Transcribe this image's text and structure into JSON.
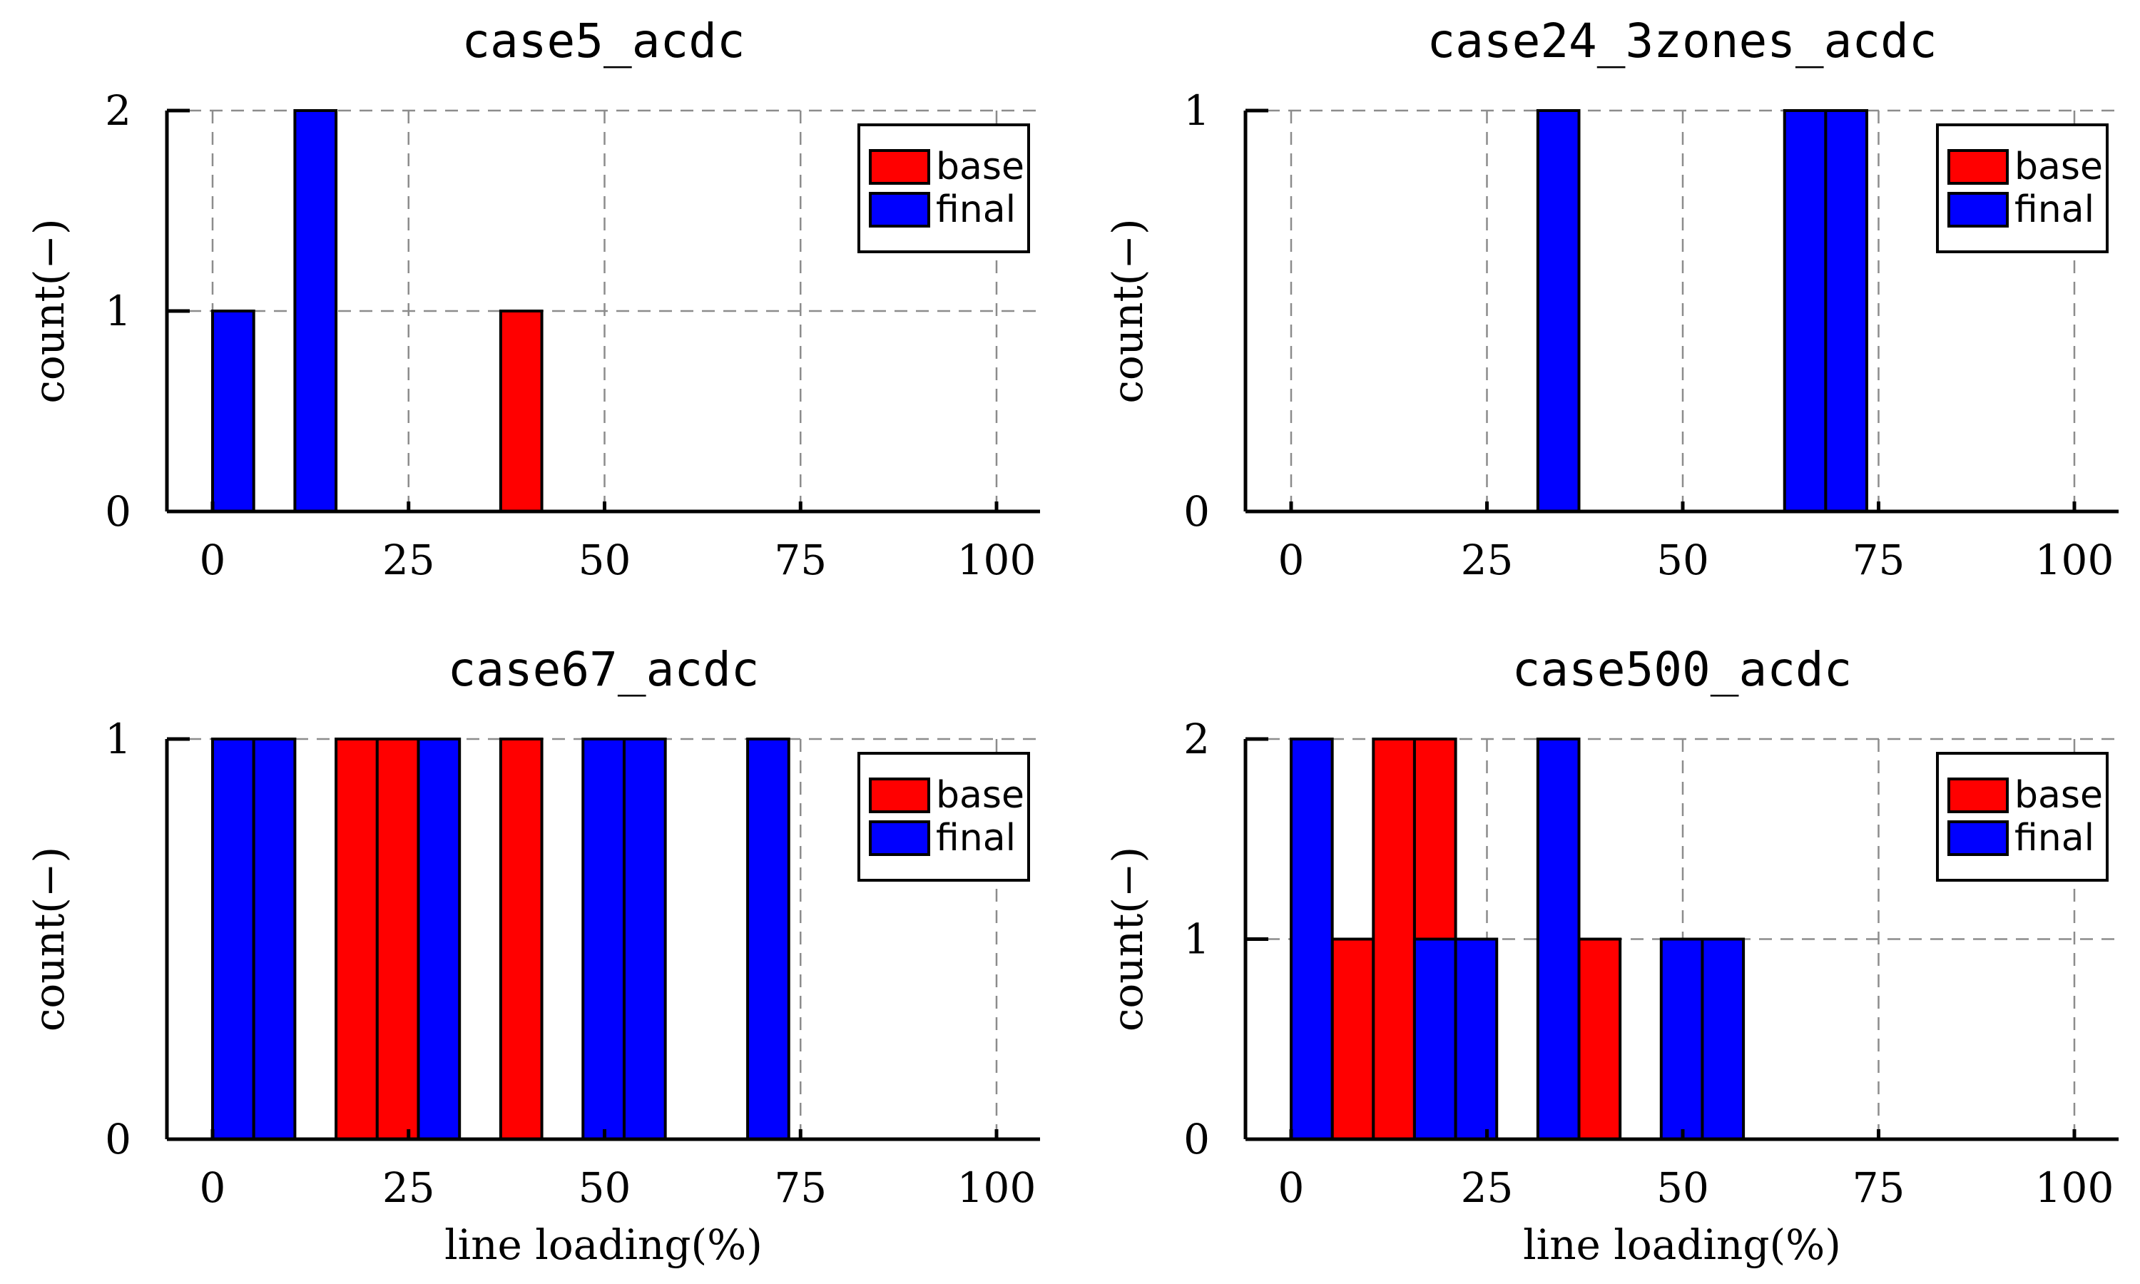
{
  "chart_data": [
    {
      "type": "bar",
      "title": "case5_acdc",
      "xlabel": "",
      "ylabel": "count(−)",
      "xlim": [
        0,
        100
      ],
      "xticks": [
        "0",
        "25",
        "50",
        "75",
        "100"
      ],
      "ylim": [
        0,
        2
      ],
      "yticks": [
        "0",
        "1",
        "2"
      ],
      "grid": true,
      "legend_position": "top-right",
      "bin_width": 5.25,
      "series": [
        {
          "name": "base",
          "color": "#ff0000",
          "bins": [
            {
              "x0": 36.75,
              "x1": 42.0,
              "count": 1
            }
          ]
        },
        {
          "name": "final",
          "color": "#0000ff",
          "bins": [
            {
              "x0": 0.0,
              "x1": 5.25,
              "count": 1
            },
            {
              "x0": 10.5,
              "x1": 15.75,
              "count": 2
            }
          ]
        }
      ]
    },
    {
      "type": "bar",
      "title": "case24_3zones_acdc",
      "xlabel": "",
      "ylabel": "count(−)",
      "xlim": [
        0,
        100
      ],
      "xticks": [
        "0",
        "25",
        "50",
        "75",
        "100"
      ],
      "ylim": [
        0,
        1
      ],
      "yticks": [
        "0",
        "1"
      ],
      "grid": true,
      "legend_position": "top-right",
      "bin_width": 5.25,
      "series": [
        {
          "name": "base",
          "color": "#ff0000",
          "bins": []
        },
        {
          "name": "final",
          "color": "#0000ff",
          "bins": [
            {
              "x0": 31.5,
              "x1": 36.75,
              "count": 1
            },
            {
              "x0": 63.0,
              "x1": 68.25,
              "count": 1
            },
            {
              "x0": 68.25,
              "x1": 73.5,
              "count": 1
            }
          ]
        }
      ]
    },
    {
      "type": "bar",
      "title": "case67_acdc",
      "xlabel": "line loading(%)",
      "ylabel": "count(−)",
      "xlim": [
        0,
        100
      ],
      "xticks": [
        "0",
        "25",
        "50",
        "75",
        "100"
      ],
      "ylim": [
        0,
        1
      ],
      "yticks": [
        "0",
        "1"
      ],
      "grid": true,
      "legend_position": "top-right",
      "bin_width": 5.25,
      "series": [
        {
          "name": "base",
          "color": "#ff0000",
          "bins": [
            {
              "x0": 15.75,
              "x1": 21.0,
              "count": 1
            },
            {
              "x0": 21.0,
              "x1": 26.25,
              "count": 1
            },
            {
              "x0": 36.75,
              "x1": 42.0,
              "count": 1
            }
          ]
        },
        {
          "name": "final",
          "color": "#0000ff",
          "bins": [
            {
              "x0": 0.0,
              "x1": 5.25,
              "count": 1
            },
            {
              "x0": 5.25,
              "x1": 10.5,
              "count": 1
            },
            {
              "x0": 26.25,
              "x1": 31.5,
              "count": 1
            },
            {
              "x0": 47.25,
              "x1": 52.5,
              "count": 1
            },
            {
              "x0": 52.5,
              "x1": 57.75,
              "count": 1
            },
            {
              "x0": 68.25,
              "x1": 73.5,
              "count": 1
            }
          ]
        }
      ]
    },
    {
      "type": "bar",
      "title": "case500_acdc",
      "xlabel": "line loading(%)",
      "ylabel": "count(−)",
      "xlim": [
        0,
        100
      ],
      "xticks": [
        "0",
        "25",
        "50",
        "75",
        "100"
      ],
      "ylim": [
        0,
        2
      ],
      "yticks": [
        "0",
        "1",
        "2"
      ],
      "grid": true,
      "legend_position": "top-right",
      "bin_width": 5.25,
      "series": [
        {
          "name": "base",
          "color": "#ff0000",
          "bins": [
            {
              "x0": 5.25,
              "x1": 10.5,
              "count": 1
            },
            {
              "x0": 10.5,
              "x1": 15.75,
              "count": 2
            },
            {
              "x0": 15.75,
              "x1": 21.0,
              "count": 2
            },
            {
              "x0": 36.75,
              "x1": 42.0,
              "count": 1
            }
          ]
        },
        {
          "name": "final",
          "color": "#0000ff",
          "bins": [
            {
              "x0": 0.0,
              "x1": 5.25,
              "count": 2
            },
            {
              "x0": 15.75,
              "x1": 21.0,
              "count": 1
            },
            {
              "x0": 21.0,
              "x1": 26.25,
              "count": 1
            },
            {
              "x0": 31.5,
              "x1": 36.75,
              "count": 2
            },
            {
              "x0": 47.25,
              "x1": 52.5,
              "count": 1
            },
            {
              "x0": 52.5,
              "x1": 57.75,
              "count": 1
            }
          ]
        }
      ]
    }
  ]
}
